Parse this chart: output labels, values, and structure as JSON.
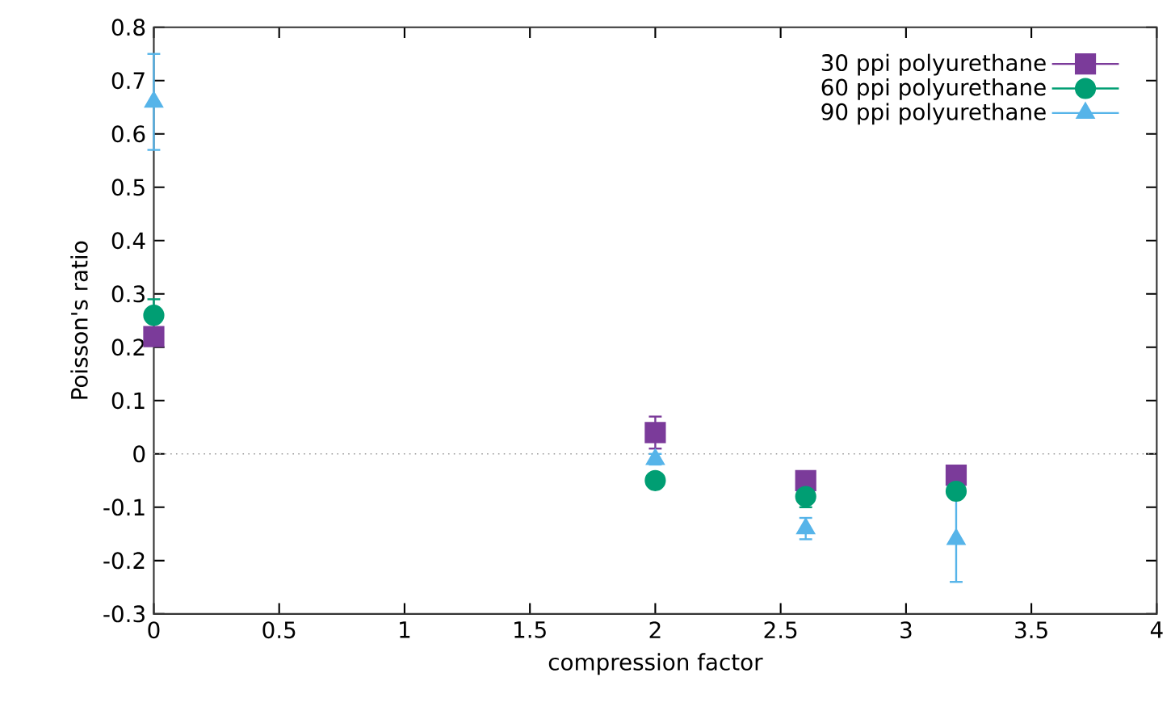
{
  "chart_data": {
    "type": "scatter",
    "xlabel": "compression factor",
    "ylabel": "Poisson's ratio",
    "x": [
      0,
      2,
      2.6,
      3.2
    ],
    "series": [
      {
        "name": "30 ppi polyurethane",
        "color": "#7b3b9a",
        "marker": "square",
        "values": [
          0.22,
          0.04,
          -0.05,
          -0.04
        ],
        "errors": [
          0.01,
          0.03,
          0.01,
          0.01
        ]
      },
      {
        "name": "60 ppi polyurethane",
        "color": "#009e73",
        "marker": "circle",
        "values": [
          0.26,
          -0.05,
          -0.08,
          -0.07
        ],
        "errors": [
          0.03,
          0.01,
          0.02,
          0.01
        ]
      },
      {
        "name": "90 ppi polyurethane",
        "color": "#56b4e9",
        "marker": "triangle",
        "values": [
          0.66,
          -0.01,
          -0.14,
          -0.16
        ],
        "errors": [
          0.09,
          0.01,
          0.02,
          0.08
        ]
      }
    ],
    "xlim": [
      0,
      4
    ],
    "ylim": [
      -0.3,
      0.8
    ],
    "xticks": [
      0,
      0.5,
      1,
      1.5,
      2,
      2.5,
      3,
      3.5,
      4
    ],
    "yticks": [
      -0.3,
      -0.2,
      -0.1,
      0,
      0.1,
      0.2,
      0.3,
      0.4,
      0.5,
      0.6,
      0.7,
      0.8
    ],
    "ref_lines": [
      {
        "axis": "y",
        "value": 0,
        "color": "#999999",
        "line_style": "dotted"
      }
    ],
    "legend": "top right"
  }
}
